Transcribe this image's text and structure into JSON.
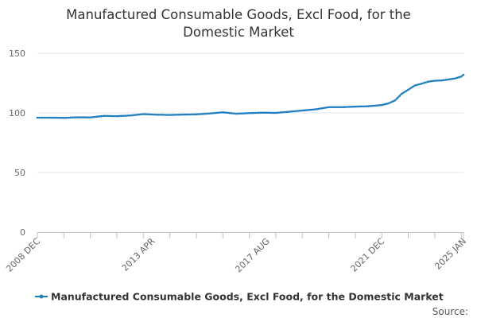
{
  "chart_data": {
    "type": "line",
    "title_lines": [
      "Manufactured Consumable Goods, Excl Food, for the",
      "Domestic Market"
    ],
    "x_start": "2008-12",
    "x_end": "2025-01",
    "x_tick_labels": [
      "2008 DEC",
      "2013 APR",
      "2017 AUG",
      "2021 DEC",
      "2025 JAN"
    ],
    "ylim": [
      0,
      150
    ],
    "y_ticks": [
      0,
      50,
      100,
      150
    ],
    "grid": true,
    "legend_position": "bottom",
    "series": [
      {
        "name": "Manufactured Consumable Goods, Excl Food, for the Domestic Market",
        "color": "#1f7fbf",
        "points": [
          [
            "2008-12",
            96.0
          ],
          [
            "2009-06",
            96.0
          ],
          [
            "2009-12",
            95.8
          ],
          [
            "2010-06",
            96.3
          ],
          [
            "2010-12",
            96.2
          ],
          [
            "2011-06",
            97.5
          ],
          [
            "2011-12",
            97.3
          ],
          [
            "2012-06",
            97.8
          ],
          [
            "2012-12",
            99.0
          ],
          [
            "2013-06",
            98.5
          ],
          [
            "2013-12",
            98.3
          ],
          [
            "2014-06",
            98.6
          ],
          [
            "2014-12",
            98.8
          ],
          [
            "2015-06",
            99.5
          ],
          [
            "2015-12",
            100.5
          ],
          [
            "2016-06",
            99.3
          ],
          [
            "2016-12",
            99.8
          ],
          [
            "2017-06",
            100.2
          ],
          [
            "2017-12",
            100.0
          ],
          [
            "2018-06",
            101.0
          ],
          [
            "2018-12",
            102.0
          ],
          [
            "2019-06",
            103.0
          ],
          [
            "2019-12",
            104.8
          ],
          [
            "2020-06",
            104.8
          ],
          [
            "2020-12",
            105.3
          ],
          [
            "2021-06",
            105.6
          ],
          [
            "2021-12",
            106.6
          ],
          [
            "2022-03",
            108.0
          ],
          [
            "2022-06",
            110.5
          ],
          [
            "2022-09",
            116.0
          ],
          [
            "2022-12",
            119.5
          ],
          [
            "2023-03",
            123.0
          ],
          [
            "2023-06",
            124.5
          ],
          [
            "2023-09",
            126.2
          ],
          [
            "2023-12",
            127.0
          ],
          [
            "2024-03",
            127.2
          ],
          [
            "2024-06",
            128.0
          ],
          [
            "2024-09",
            128.8
          ],
          [
            "2024-12",
            130.5
          ],
          [
            "2025-01",
            132.0
          ]
        ]
      }
    ]
  },
  "legend": {
    "label": "Manufactured Consumable Goods, Excl Food, for the Domestic Market"
  },
  "footer": {
    "source_label": "Source:"
  }
}
